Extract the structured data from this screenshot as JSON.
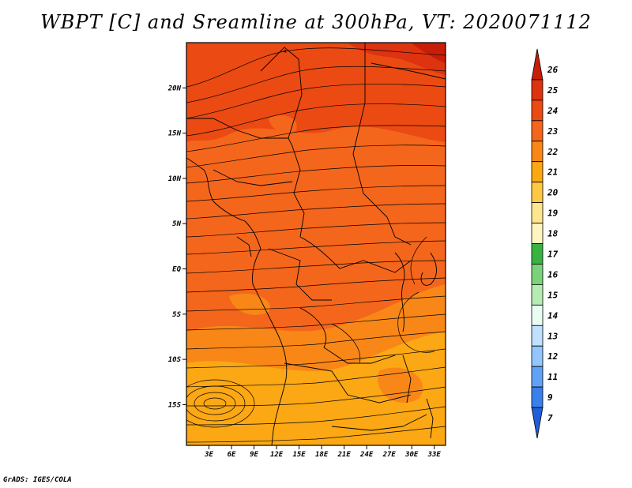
{
  "title": "WBPT [C] and Sreamline at 300hPa, VT: 2020071112",
  "credit": "GrADS: IGES/COLA",
  "map": {
    "variable": "Wet-bulb potential temperature",
    "units": "C",
    "level": "300hPa",
    "valid_time": "2020071112",
    "lat_ticks": [
      "20N",
      "15N",
      "10N",
      "5N",
      "EQ",
      "5S",
      "10S",
      "15S"
    ],
    "lat_values": [
      20,
      15,
      10,
      5,
      0,
      -5,
      -10,
      -15
    ],
    "lon_ticks": [
      "3E",
      "6E",
      "9E",
      "12E",
      "15E",
      "18E",
      "21E",
      "24E",
      "27E",
      "30E",
      "33E"
    ],
    "lon_values": [
      3,
      6,
      9,
      12,
      15,
      18,
      21,
      24,
      27,
      30,
      33
    ],
    "extent": {
      "lon_min": 0,
      "lon_max": 34.5,
      "lat_min": -19.5,
      "lat_max": 25
    }
  },
  "colorbar": {
    "labels": [
      "26",
      "25",
      "24",
      "23",
      "22",
      "21",
      "20",
      "19",
      "18",
      "17",
      "16",
      "15",
      "14",
      "13",
      "12",
      "11",
      "9",
      "7"
    ],
    "colors": [
      "#c81e08",
      "#dd3310",
      "#eb4a13",
      "#f4661c",
      "#f88717",
      "#fca814",
      "#fdc844",
      "#fee68e",
      "#fff6bf",
      "#39b241",
      "#7ad37a",
      "#b4ecb4",
      "#e9fdf3",
      "#bfe0fe",
      "#92c6fc",
      "#62a2f5",
      "#3a80ea",
      "#1f5fda"
    ]
  }
}
